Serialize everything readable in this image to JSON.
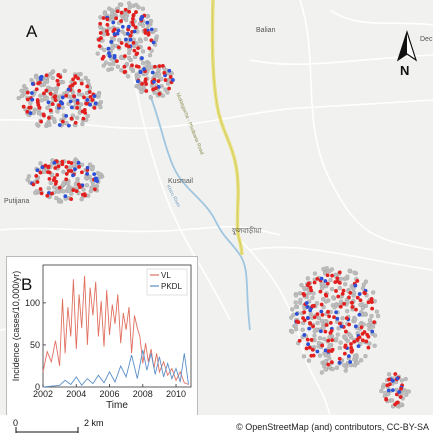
{
  "panel_labels": {
    "map": "A",
    "inset": "B"
  },
  "place_labels": {
    "balian": "Balian",
    "kusmail": "Kusmail",
    "putijana": "Putijana",
    "bengali_town": "ফুলবাড়ীয়া",
    "dec": "Dec",
    "road": "Muktagacha - Phulbaria Road",
    "river": "Khiru River"
  },
  "north_arrow": {
    "label": "N"
  },
  "scale_bar": {
    "start": "0",
    "end": "2 km"
  },
  "credit": "© OpenStreetMap (and) contributors, CC-BY-SA",
  "colors": {
    "vl": "#e07060",
    "pkdl": "#5b8fc9",
    "case_red": "#e32020",
    "case_blue": "#2d4fd6",
    "household": "#bdbdbd",
    "road_yellow": "#e8e07a",
    "river": "#9fc6e0"
  },
  "chart_data": {
    "type": "line",
    "title": "",
    "xlabel": "Time",
    "ylabel": "Incidence (cases/10,000/yr)",
    "xlim": [
      2002,
      2010.9
    ],
    "ylim": [
      0,
      145
    ],
    "xticks": [
      "2002",
      "2004",
      "2006",
      "2008",
      "2010"
    ],
    "yticks": [
      "0",
      "50",
      "100"
    ],
    "legend": "top-right",
    "series": [
      {
        "name": "VL",
        "color": "#e07060",
        "x": [
          2002.0,
          2002.25,
          2002.5,
          2002.75,
          2003.0,
          2003.17,
          2003.33,
          2003.5,
          2003.67,
          2003.83,
          2004.0,
          2004.17,
          2004.33,
          2004.5,
          2004.67,
          2004.83,
          2005.0,
          2005.17,
          2005.33,
          2005.5,
          2005.67,
          2005.83,
          2006.0,
          2006.17,
          2006.33,
          2006.5,
          2006.67,
          2006.83,
          2007.0,
          2007.17,
          2007.33,
          2007.5,
          2007.67,
          2007.83,
          2008.0,
          2008.17,
          2008.33,
          2008.5,
          2008.67,
          2008.83,
          2009.0,
          2009.25,
          2009.5,
          2009.75,
          2010.0,
          2010.25,
          2010.5,
          2010.75
        ],
        "y": [
          18,
          42,
          30,
          55,
          25,
          105,
          40,
          95,
          60,
          128,
          45,
          110,
          70,
          132,
          50,
          118,
          85,
          125,
          60,
          102,
          48,
          115,
          62,
          98,
          75,
          110,
          52,
          88,
          68,
          95,
          40,
          85,
          70,
          60,
          28,
          52,
          30,
          45,
          22,
          40,
          18,
          30,
          14,
          22,
          8,
          18,
          5,
          3
        ]
      },
      {
        "name": "PKDL",
        "color": "#5b8fc9",
        "x": [
          2002.0,
          2002.5,
          2003.0,
          2003.33,
          2003.67,
          2004.0,
          2004.33,
          2004.67,
          2005.0,
          2005.33,
          2005.67,
          2006.0,
          2006.33,
          2006.67,
          2007.0,
          2007.33,
          2007.67,
          2008.0,
          2008.25,
          2008.5,
          2008.75,
          2009.0,
          2009.25,
          2009.5,
          2009.75,
          2010.0,
          2010.25,
          2010.5,
          2010.75
        ],
        "y": [
          0,
          1,
          2,
          8,
          3,
          12,
          2,
          10,
          4,
          14,
          5,
          18,
          6,
          25,
          12,
          38,
          10,
          44,
          20,
          40,
          15,
          36,
          12,
          28,
          10,
          22,
          6,
          40,
          3
        ]
      }
    ]
  }
}
